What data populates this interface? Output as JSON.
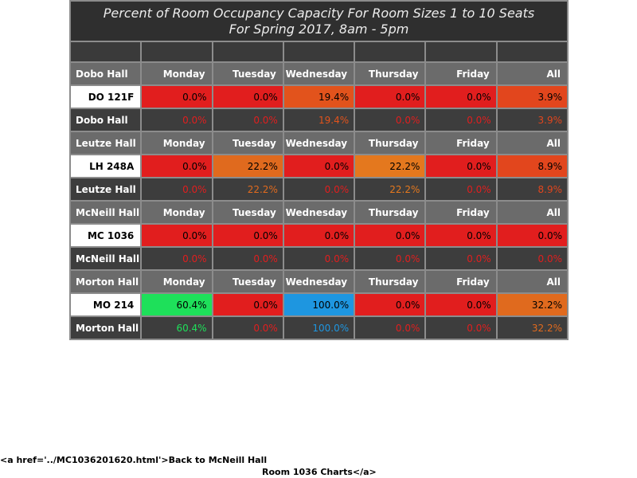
{
  "title": {
    "line1": "Percent of Room Occupancy Capacity For Room Sizes 1 to 10 Seats",
    "line2": "For Spring 2017, 8am - 5pm"
  },
  "colors": {
    "red": "#e11e1e",
    "dark_orange": "#e2461d",
    "orange": "#e06a1e",
    "light_orange": "#e4781e",
    "green": "#1ee05a",
    "blue": "#1e96e0"
  },
  "days": [
    "Monday",
    "Tuesday",
    "Wednesday",
    "Thursday",
    "Friday",
    "All"
  ],
  "sections": [
    {
      "hall": "Dobo Hall",
      "room": "DO 121F",
      "values": [
        "0.0%",
        "0.0%",
        "19.4%",
        "0.0%",
        "0.0%",
        "3.9%"
      ],
      "colors": [
        "#e11e1e",
        "#e11e1e",
        "#e2531c",
        "#e11e1e",
        "#e11e1e",
        "#e2461d"
      ]
    },
    {
      "hall": "Leutze Hall",
      "room": "LH 248A",
      "values": [
        "0.0%",
        "22.2%",
        "0.0%",
        "22.2%",
        "0.0%",
        "8.9%"
      ],
      "colors": [
        "#e11e1e",
        "#e06a1e",
        "#e11e1e",
        "#e4781e",
        "#e11e1e",
        "#e2461d"
      ]
    },
    {
      "hall": "McNeill Hall",
      "room": "MC 1036",
      "values": [
        "0.0%",
        "0.0%",
        "0.0%",
        "0.0%",
        "0.0%",
        "0.0%"
      ],
      "colors": [
        "#e11e1e",
        "#e11e1e",
        "#e11e1e",
        "#e11e1e",
        "#e11e1e",
        "#e11e1e"
      ]
    },
    {
      "hall": "Morton Hall",
      "room": "MO 214",
      "values": [
        "60.4%",
        "0.0%",
        "100.0%",
        "0.0%",
        "0.0%",
        "32.2%"
      ],
      "colors": [
        "#1ee05a",
        "#e11e1e",
        "#1e96e0",
        "#e11e1e",
        "#e11e1e",
        "#e06a1e"
      ]
    }
  ],
  "footer": {
    "line1": "<a href='../MC1036201620.html'>Back to McNeill Hall",
    "line2": "Room 1036 Charts</a>"
  }
}
